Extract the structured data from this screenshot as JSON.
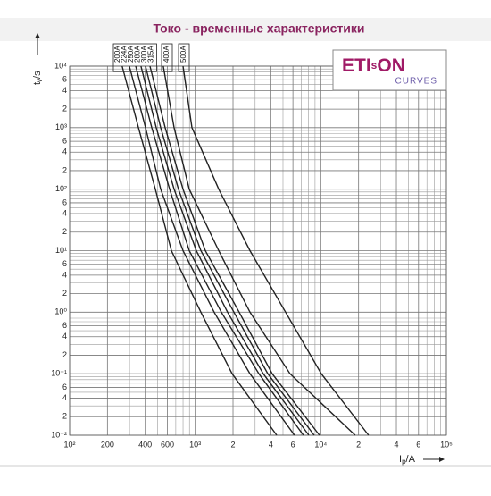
{
  "chart_data": {
    "type": "line",
    "title": "Токо - временные характеристики",
    "y_label": {
      "symbol": "t",
      "subscript": "v",
      "unit": "/s"
    },
    "x_label": {
      "symbol": "I",
      "subscript": "p",
      "unit": "/A"
    },
    "logo": {
      "parts": [
        "ETI",
        "s",
        "ON"
      ],
      "subtitle": "CURVES"
    },
    "log_x": true,
    "log_y": true,
    "grid": true,
    "xlim": [
      100,
      100000
    ],
    "ylim": [
      0.01,
      10000
    ],
    "xticks": [
      {
        "value": 100,
        "label": "10²"
      },
      200,
      400,
      600,
      {
        "value": 1000,
        "label": "10³"
      },
      {
        "value": 2000,
        "label": "2"
      },
      {
        "value": 4000,
        "label": "4"
      },
      {
        "value": 6000,
        "label": "6"
      },
      {
        "value": 10000,
        "label": "10⁴"
      },
      {
        "value": 20000,
        "label": "2"
      },
      {
        "value": 40000,
        "label": "4"
      },
      {
        "value": 60000,
        "label": "6"
      },
      {
        "value": 100000,
        "label": "10⁵"
      }
    ],
    "yticks": [
      {
        "value": 0.01,
        "label": "10⁻²"
      },
      {
        "value": 0.02,
        "label": "2"
      },
      {
        "value": 0.04,
        "label": "4"
      },
      {
        "value": 0.06,
        "label": "6"
      },
      {
        "value": 0.1,
        "label": "10⁻¹"
      },
      {
        "value": 0.2,
        "label": "2"
      },
      {
        "value": 0.4,
        "label": "4"
      },
      {
        "value": 0.6,
        "label": "6"
      },
      {
        "value": 1,
        "label": "10⁰"
      },
      2,
      4,
      6,
      {
        "value": 10,
        "label": "10¹"
      },
      {
        "value": 20,
        "label": "2"
      },
      {
        "value": 40,
        "label": "4"
      },
      {
        "value": 60,
        "label": "6"
      },
      {
        "value": 100,
        "label": "10²"
      },
      {
        "value": 200,
        "label": "2"
      },
      {
        "value": 400,
        "label": "4"
      },
      {
        "value": 600,
        "label": "6"
      },
      {
        "value": 1000,
        "label": "10³"
      },
      {
        "value": 2000,
        "label": "2"
      },
      {
        "value": 4000,
        "label": "4"
      },
      {
        "value": 6000,
        "label": "6"
      },
      {
        "value": 10000,
        "label": "10⁴"
      }
    ],
    "x_minor_grid": [
      300,
      500,
      700,
      800,
      900,
      3000,
      5000,
      7000,
      8000,
      9000,
      30000,
      50000,
      70000,
      80000,
      90000
    ],
    "y_minor_grid": [
      0.03,
      0.05,
      0.07,
      0.08,
      0.09,
      0.3,
      0.5,
      0.7,
      0.8,
      0.9,
      3,
      5,
      7,
      8,
      9,
      30,
      50,
      70,
      80,
      90,
      300,
      500,
      700,
      800,
      900,
      3000,
      5000,
      7000,
      8000,
      9000
    ],
    "color": "#222222",
    "series": [
      {
        "name": "200A",
        "x": [
          262,
          353,
          481,
          646,
          1109,
          1967,
          4457
        ],
        "values": [
          10000,
          1000,
          100,
          10,
          1,
          0.1,
          0.01
        ]
      },
      {
        "name": "224A",
        "x": [
          299,
          402,
          531,
          799,
          1416,
          2729,
          6180
        ],
        "values": [
          10000,
          1000,
          100,
          10,
          1,
          0.1,
          0.01
        ]
      },
      {
        "name": "250A",
        "x": [
          336,
          451,
          625,
          896,
          1615,
          3214,
          7278
        ],
        "values": [
          10000,
          1000,
          100,
          10,
          1,
          0.1,
          0.01
        ]
      },
      {
        "name": "280A",
        "x": [
          370,
          489,
          679,
          1021,
          1811,
          3483,
          8035
        ],
        "values": [
          10000,
          1000,
          100,
          10,
          1,
          0.1,
          0.01
        ]
      },
      {
        "name": "300A",
        "x": [
          402,
          531,
          736,
          1109,
          2032,
          3784,
          8851
        ],
        "values": [
          10000,
          1000,
          100,
          10,
          1,
          0.1,
          0.01
        ]
      },
      {
        "name": "315A",
        "x": [
          436,
          576,
          799,
          1203,
          2239,
          4102,
          9772
        ],
        "values": [
          10000,
          1000,
          100,
          10,
          1,
          0.1,
          0.01
        ]
      },
      {
        "name": "400A",
        "x": [
          557,
          679,
          896,
          1538,
          2729,
          5689,
          18793
        ],
        "values": [
          10000,
          1000,
          100,
          10,
          1,
          0.1,
          0.01
        ]
      },
      {
        "name": "500A",
        "x": [
          799,
          941,
          1538,
          2729,
          5248,
          10093,
          24040
        ],
        "values": [
          10000,
          1000,
          100,
          10,
          1,
          0.1,
          0.01
        ]
      }
    ]
  }
}
